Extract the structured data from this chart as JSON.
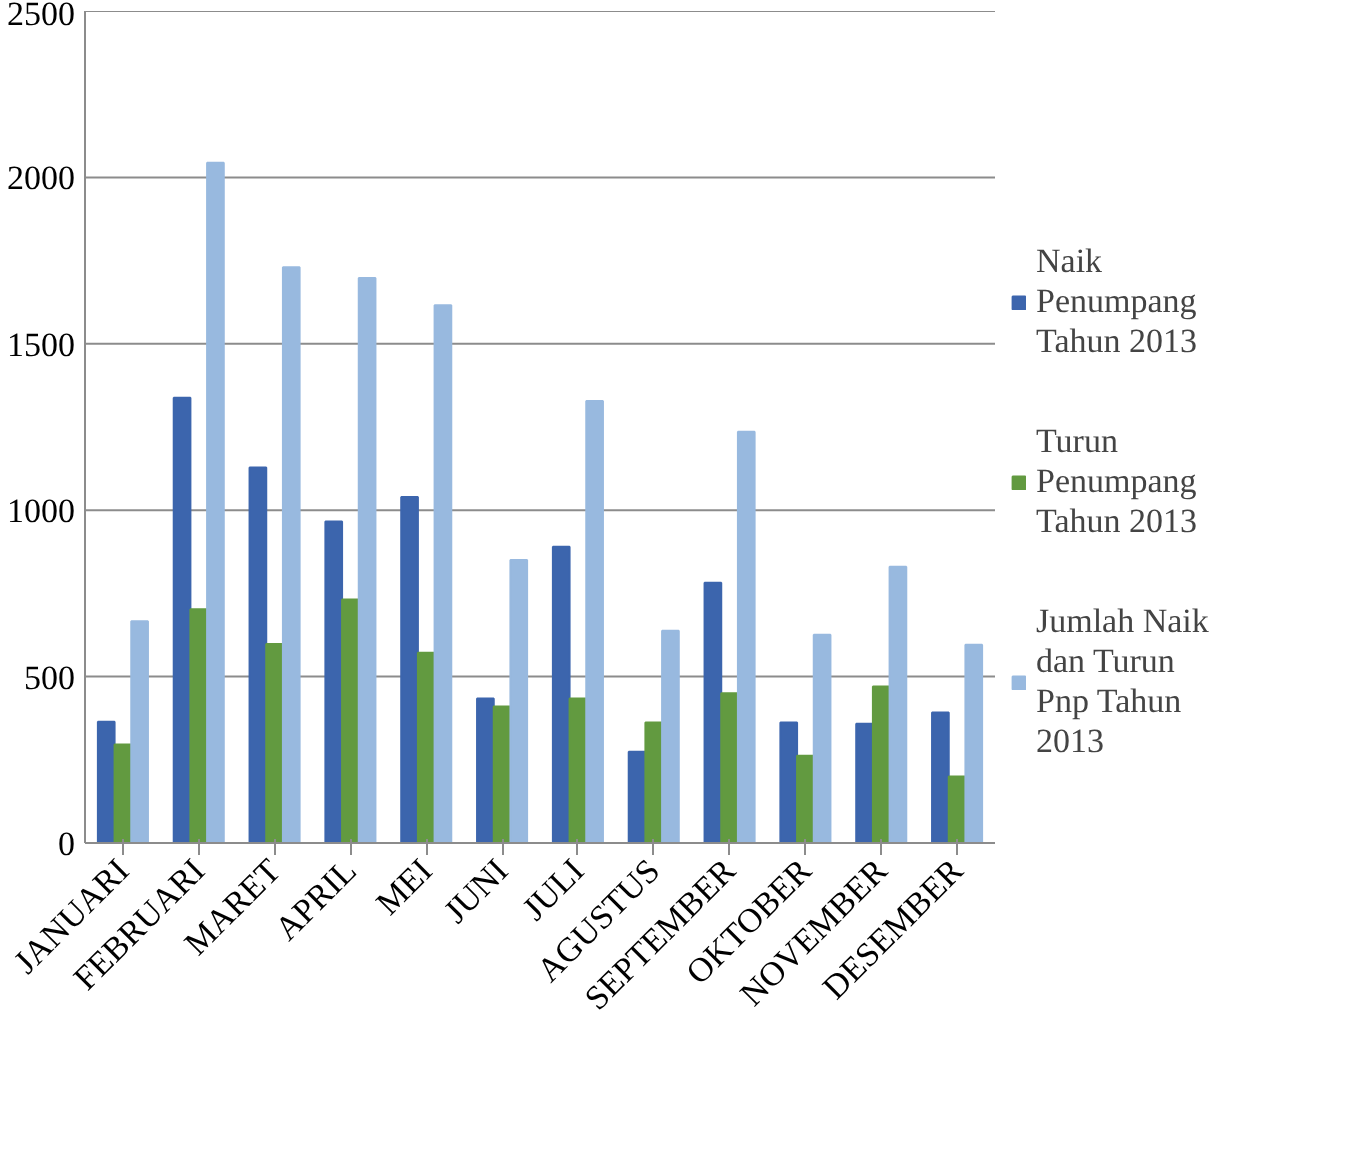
{
  "chart_data": {
    "type": "bar",
    "categories": [
      "JANUARI",
      "FEBRUARI",
      "MARET",
      "APRIL",
      "MEI",
      "JUNI",
      "JULI",
      "AGUSTUS",
      "SEPTEMBER",
      "OKTOBER",
      "NOVEMBER",
      "DESEMBER"
    ],
    "series": [
      {
        "name": "Naik Penumpang Tahun 2013",
        "color": "#3c65ad",
        "values": [
          364,
          1338,
          1128,
          966,
          1040,
          434,
          890,
          274,
          782,
          362,
          358,
          392
        ]
      },
      {
        "name": "Turun Penumpang Tahun 2013",
        "color": "#629a40",
        "values": [
          296,
          702,
          598,
          732,
          572,
          410,
          434,
          362,
          450,
          262,
          470,
          200
        ]
      },
      {
        "name": "Jumlah Naik dan Turun Pnp Tahun 2013",
        "color": "#98b9df",
        "values": [
          666,
          2044,
          1730,
          1698,
          1616,
          850,
          1328,
          638,
          1236,
          626,
          830,
          596
        ]
      }
    ],
    "ylim": [
      0,
      2500
    ],
    "yticks": [
      0,
      500,
      1000,
      1500,
      2000,
      2500
    ],
    "grid": "y",
    "legend": "right"
  }
}
